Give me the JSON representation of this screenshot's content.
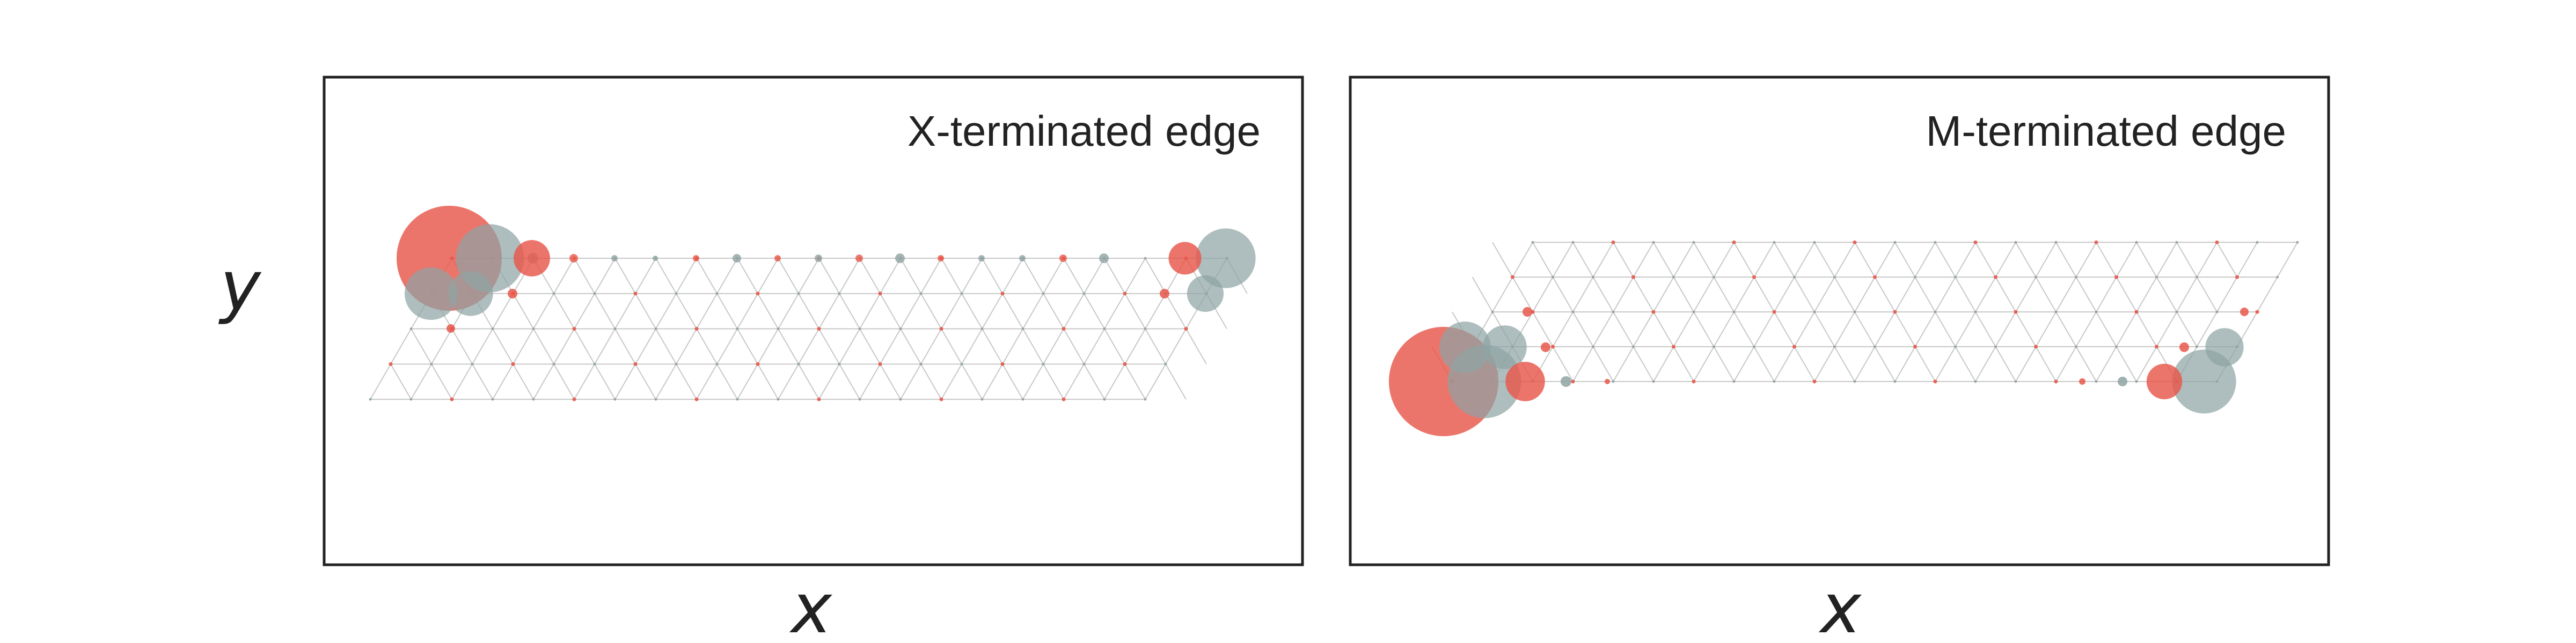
{
  "figure": {
    "ylabel": "y",
    "xlabel": "x",
    "colors": {
      "frame": "#222222",
      "lattice": "#c8c8c8",
      "metal_site": "#e8574a",
      "chalcogen_site": "#8fa3a3",
      "label": "#222222"
    },
    "panels": [
      {
        "title": "X-terminated edge",
        "site_weights": {
          "edge_top_left": [
            {
              "species": "metal_site",
              "weight": 1.0
            },
            {
              "species": "chalcogen_site",
              "weight": 0.42
            },
            {
              "species": "chalcogen_site",
              "weight": 0.25
            },
            {
              "species": "chalcogen_site",
              "weight": 0.18
            },
            {
              "species": "metal_site",
              "weight": 0.12
            }
          ],
          "edge_top_right": [
            {
              "species": "chalcogen_site",
              "weight": 0.4
            },
            {
              "species": "metal_site",
              "weight": 0.12
            },
            {
              "species": "chalcogen_site",
              "weight": 0.15
            }
          ]
        }
      },
      {
        "title": "M-terminated edge",
        "site_weights": {
          "edge_bottom_left": [
            {
              "species": "metal_site",
              "weight": 1.0
            },
            {
              "species": "chalcogen_site",
              "weight": 0.45
            },
            {
              "species": "chalcogen_site",
              "weight": 0.22
            },
            {
              "species": "chalcogen_site",
              "weight": 0.16
            },
            {
              "species": "metal_site",
              "weight": 0.13
            }
          ],
          "edge_bottom_right": [
            {
              "species": "chalcogen_site",
              "weight": 0.42
            },
            {
              "species": "metal_site",
              "weight": 0.13
            },
            {
              "species": "chalcogen_site",
              "weight": 0.15
            }
          ]
        }
      }
    ]
  }
}
